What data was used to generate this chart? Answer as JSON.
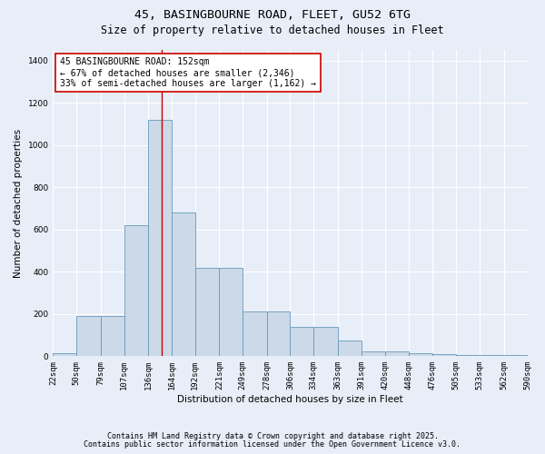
{
  "title": "45, BASINGBOURNE ROAD, FLEET, GU52 6TG",
  "subtitle": "Size of property relative to detached houses in Fleet",
  "xlabel": "Distribution of detached houses by size in Fleet",
  "ylabel": "Number of detached properties",
  "bar_color": "#ccd9e8",
  "bar_edge_color": "#6699bb",
  "background_color": "#e8eef8",
  "fig_background_color": "#e8eef8",
  "grid_color": "#ffffff",
  "bin_edges": [
    22,
    50,
    79,
    107,
    136,
    164,
    192,
    221,
    249,
    278,
    306,
    334,
    363,
    391,
    420,
    448,
    476,
    505,
    533,
    562,
    590
  ],
  "bar_heights": [
    15,
    190,
    190,
    620,
    1120,
    680,
    420,
    420,
    210,
    210,
    140,
    140,
    75,
    25,
    25,
    15,
    10,
    5,
    5,
    5
  ],
  "property_size": 152,
  "annotation_title": "45 BASINGBOURNE ROAD: 152sqm",
  "annotation_line1": "← 67% of detached houses are smaller (2,346)",
  "annotation_line2": "33% of semi-detached houses are larger (1,162) →",
  "annotation_box_color": "#ffffff",
  "annotation_border_color": "#cc0000",
  "red_line_color": "#cc0000",
  "ylim": [
    0,
    1450
  ],
  "yticks": [
    0,
    200,
    400,
    600,
    800,
    1000,
    1200,
    1400
  ],
  "footnote1": "Contains HM Land Registry data © Crown copyright and database right 2025.",
  "footnote2": "Contains public sector information licensed under the Open Government Licence v3.0.",
  "title_fontsize": 9.5,
  "subtitle_fontsize": 8.5,
  "ylabel_fontsize": 7.5,
  "xlabel_fontsize": 7.5,
  "tick_fontsize": 6.5,
  "annotation_fontsize": 7,
  "footnote_fontsize": 6
}
